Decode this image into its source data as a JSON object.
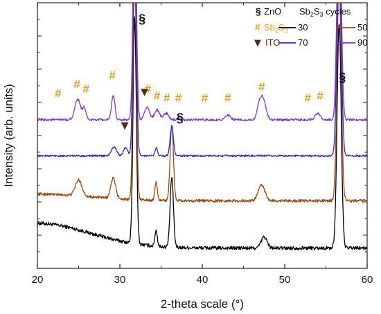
{
  "chart_data": {
    "type": "line",
    "xlabel": "2-theta scale (°)",
    "ylabel": "Intensity (arb. units)",
    "xlim": [
      20,
      60
    ],
    "x_ticks": [
      "20",
      "30",
      "40",
      "50",
      "60"
    ],
    "grid": false,
    "legend": {
      "placement": "top-right",
      "phase_items": [
        {
          "symbol": "§",
          "label": "ZnO",
          "color": "#111111"
        },
        {
          "symbol": "#",
          "label": "Sb2S3",
          "color": "#e0a020"
        },
        {
          "symbol": "▼",
          "label": "ITO",
          "color": "#5a2a10"
        }
      ],
      "series_title": "Sb2S3 cycles"
    },
    "series": [
      {
        "name": "30",
        "color": "#000000",
        "offset": 0.0,
        "noise": 0.04,
        "hump": 0.55,
        "peaks": [
          [
            31.8,
            5.0,
            0.2
          ],
          [
            34.4,
            0.35,
            0.15
          ],
          [
            36.3,
            1.55,
            0.2
          ],
          [
            47.5,
            0.25,
            0.35
          ],
          [
            56.6,
            5.0,
            0.25
          ]
        ]
      },
      {
        "name": "50",
        "color": "#9a4a10",
        "offset": 1.05,
        "noise": 0.03,
        "hump": 0.15,
        "peaks": [
          [
            25.0,
            0.35,
            0.4
          ],
          [
            29.2,
            0.45,
            0.3
          ],
          [
            31.8,
            5.0,
            0.2
          ],
          [
            34.4,
            0.4,
            0.15
          ],
          [
            36.3,
            1.7,
            0.2
          ],
          [
            47.2,
            0.35,
            0.4
          ],
          [
            56.6,
            5.0,
            0.25
          ]
        ]
      },
      {
        "name": "70",
        "color": "#2828d8",
        "offset": 2.05,
        "noise": 0.02,
        "hump": 0.0,
        "peaks": [
          [
            29.3,
            0.2,
            0.3
          ],
          [
            30.7,
            0.18,
            0.25
          ],
          [
            31.8,
            5.0,
            0.2
          ],
          [
            34.4,
            0.18,
            0.15
          ],
          [
            36.3,
            0.65,
            0.2
          ],
          [
            56.6,
            5.0,
            0.25
          ]
        ]
      },
      {
        "name": "90",
        "color": "#7a3ad8",
        "offset": 2.85,
        "noise": 0.025,
        "hump": 0.0,
        "peaks": [
          [
            24.9,
            0.45,
            0.35
          ],
          [
            25.7,
            0.25,
            0.2
          ],
          [
            29.2,
            0.55,
            0.2
          ],
          [
            31.8,
            5.0,
            0.2
          ],
          [
            33.3,
            0.28,
            0.3
          ],
          [
            34.5,
            0.22,
            0.3
          ],
          [
            35.6,
            0.15,
            0.3
          ],
          [
            43.1,
            0.1,
            0.3
          ],
          [
            47.0,
            0.4,
            0.3
          ],
          [
            47.5,
            0.35,
            0.3
          ],
          [
            54.0,
            0.15,
            0.3
          ],
          [
            56.6,
            5.0,
            0.25
          ]
        ]
      }
    ],
    "annotations": [
      {
        "text": "§",
        "x": 32.7,
        "y": 5.0,
        "kind": "zno"
      },
      {
        "text": "§",
        "x": 57.0,
        "y": 3.7,
        "kind": "zno"
      },
      {
        "text": "§",
        "x": 37.3,
        "y": 2.8,
        "kind": "zno"
      },
      {
        "text": "#",
        "x": 22.5,
        "y": 3.35,
        "kind": "sb2s3"
      },
      {
        "text": "#",
        "x": 24.8,
        "y": 3.55,
        "kind": "sb2s3"
      },
      {
        "text": "#",
        "x": 25.9,
        "y": 3.45,
        "kind": "sb2s3"
      },
      {
        "text": "#",
        "x": 29.1,
        "y": 3.75,
        "kind": "sb2s3"
      },
      {
        "text": "#",
        "x": 33.4,
        "y": 3.45,
        "kind": "sb2s3"
      },
      {
        "text": "#",
        "x": 34.5,
        "y": 3.3,
        "kind": "sb2s3"
      },
      {
        "text": "#",
        "x": 35.7,
        "y": 3.25,
        "kind": "sb2s3"
      },
      {
        "text": "#",
        "x": 37.1,
        "y": 3.25,
        "kind": "sb2s3"
      },
      {
        "text": "#",
        "x": 40.3,
        "y": 3.25,
        "kind": "sb2s3"
      },
      {
        "text": "#",
        "x": 43.1,
        "y": 3.25,
        "kind": "sb2s3"
      },
      {
        "text": "#",
        "x": 47.2,
        "y": 3.5,
        "kind": "sb2s3"
      },
      {
        "text": "#",
        "x": 52.8,
        "y": 3.25,
        "kind": "sb2s3"
      },
      {
        "text": "#",
        "x": 54.3,
        "y": 3.3,
        "kind": "sb2s3"
      },
      {
        "text": "▼",
        "x": 30.6,
        "y": 2.65,
        "kind": "ito"
      },
      {
        "text": "▼",
        "x": 33.0,
        "y": 3.4,
        "kind": "ito"
      }
    ]
  }
}
